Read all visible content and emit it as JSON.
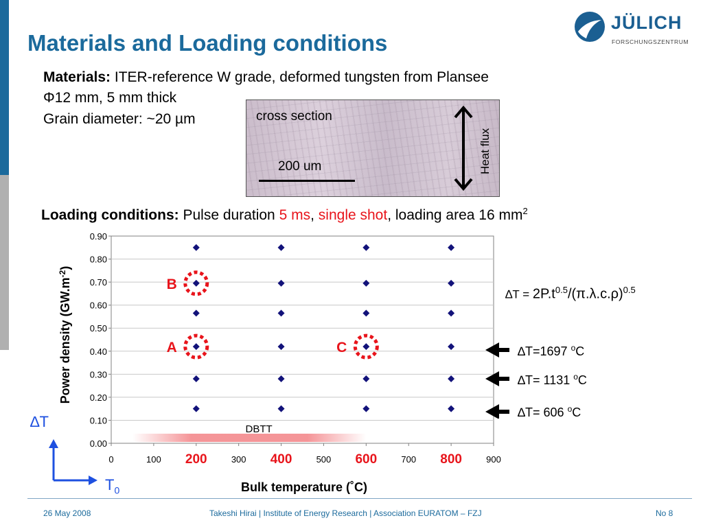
{
  "slide": {
    "title": "Materials and Loading conditions",
    "logo": {
      "name": "JÜLICH",
      "subtitle": "FORSCHUNGSZENTRUM"
    },
    "materials_label": "Materials:",
    "materials_text": "ITER-reference W grade, deformed tungsten from Plansee",
    "dimensions": "Φ12 mm, 5 mm thick",
    "grain": "Grain diameter: ~20 µm",
    "micrograph": {
      "caption": "cross section",
      "scale_label": "200 um",
      "arrow_label": "Heat flux"
    },
    "loading_label": "Loading conditions:",
    "loading_pre": "Pulse duration",
    "loading_duration": "5 ms",
    "loading_sep1": ",",
    "loading_shot": "single shot",
    "loading_post": ", loading area 16 mm",
    "loading_sup": "2",
    "formula": {
      "lhs": "∆T = ",
      "body": "2P.t",
      "exp1": "0.5",
      "mid": "/(π.λ.c.ρ)",
      "exp2": "0.5"
    },
    "dt_labels": [
      {
        "pre": "∆T=1697 ",
        "sup": "o",
        "post": "C"
      },
      {
        "pre": "∆T= 1131 ",
        "sup": "o",
        "post": "C"
      },
      {
        "pre": "∆T= 606 ",
        "sup": "o",
        "post": "C"
      }
    ],
    "axes_corner": {
      "y": "∆T",
      "x": "T",
      "x_sub": "0"
    },
    "footer": {
      "date": "26 May 2008",
      "center": "Takeshi Hirai | Institute of Energy Research | Association EURATOM – FZJ",
      "page": "No 8"
    },
    "colors": {
      "title": "#1b6a9c",
      "accent_red": "#e8141b",
      "marker": "#12127a",
      "bar_top": "#1b6a9c",
      "bar_bottom": "#b0b0b0"
    }
  },
  "chart_data": {
    "type": "scatter",
    "xlabel": "Bulk temperature (˚C)",
    "ylabel": "Power density (GW.m-2)",
    "xlim": [
      0,
      900
    ],
    "ylim": [
      0,
      0.9
    ],
    "y_ticks": [
      "0.00",
      "0.10",
      "0.20",
      "0.30",
      "0.40",
      "0.50",
      "0.60",
      "0.70",
      "0.80",
      "0.90"
    ],
    "x_ticks": [
      {
        "value": 0,
        "label": "0",
        "highlight": false
      },
      {
        "value": 100,
        "label": "100",
        "highlight": false
      },
      {
        "value": 200,
        "label": "200",
        "highlight": true
      },
      {
        "value": 300,
        "label": "300",
        "highlight": false
      },
      {
        "value": 400,
        "label": "400",
        "highlight": true
      },
      {
        "value": 500,
        "label": "500",
        "highlight": false
      },
      {
        "value": 600,
        "label": "600",
        "highlight": true
      },
      {
        "value": 700,
        "label": "700",
        "highlight": false
      },
      {
        "value": 800,
        "label": "800",
        "highlight": true
      },
      {
        "value": 900,
        "label": "900",
        "highlight": false
      }
    ],
    "grid": true,
    "points": [
      [
        200,
        0.15
      ],
      [
        200,
        0.28
      ],
      [
        200,
        0.42
      ],
      [
        200,
        0.565
      ],
      [
        200,
        0.695
      ],
      [
        200,
        0.85
      ],
      [
        400,
        0.15
      ],
      [
        400,
        0.28
      ],
      [
        400,
        0.42
      ],
      [
        400,
        0.565
      ],
      [
        400,
        0.695
      ],
      [
        400,
        0.85
      ],
      [
        600,
        0.15
      ],
      [
        600,
        0.28
      ],
      [
        600,
        0.42
      ],
      [
        600,
        0.565
      ],
      [
        600,
        0.695
      ],
      [
        600,
        0.85
      ],
      [
        800,
        0.15
      ],
      [
        800,
        0.28
      ],
      [
        800,
        0.42
      ],
      [
        800,
        0.565
      ],
      [
        800,
        0.695
      ],
      [
        800,
        0.85
      ]
    ],
    "annotations": [
      {
        "label": "B",
        "x": 200,
        "y": 0.695
      },
      {
        "label": "A",
        "x": 200,
        "y": 0.42
      },
      {
        "label": "C",
        "x": 600,
        "y": 0.42
      }
    ],
    "band": {
      "label": "DBTT",
      "from": 50,
      "to": 600
    }
  }
}
